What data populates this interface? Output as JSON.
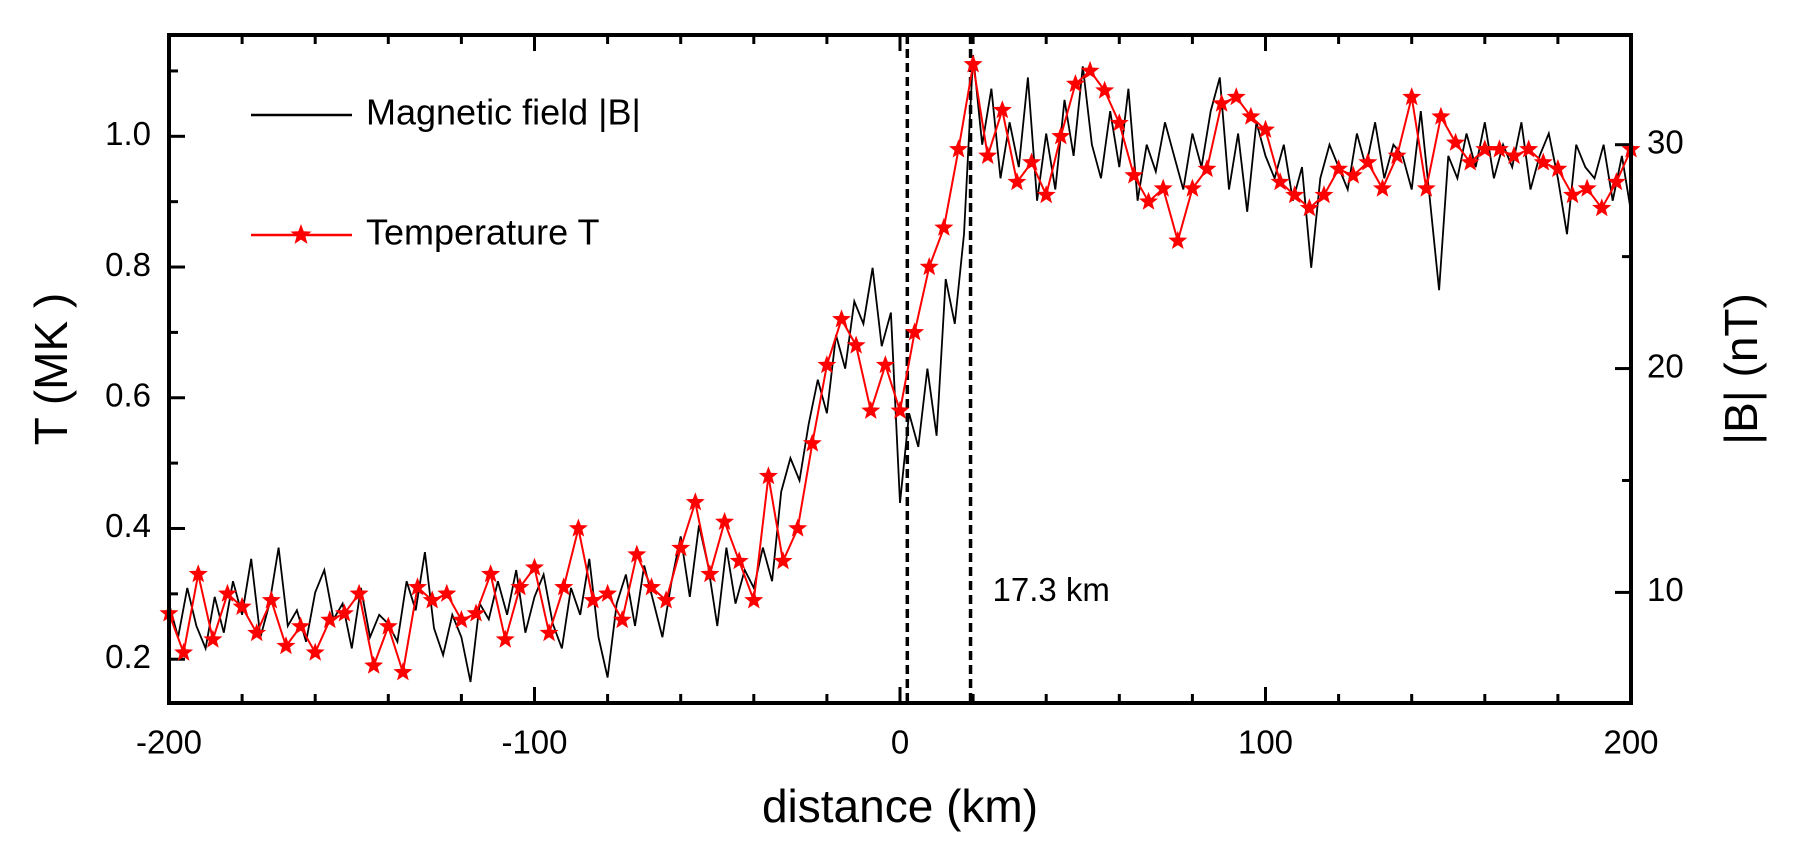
{
  "chart_data": {
    "type": "line",
    "xlabel": "distance (km)",
    "ylabel": "T  (MK )",
    "y2label": "|B| (nT)",
    "annotation": "17.3 km",
    "vlines": [
      2,
      19.3
    ],
    "xlim": [
      -200,
      200
    ],
    "xticks": [
      -200,
      -100,
      0,
      100,
      200
    ],
    "xminorticks": [
      -180,
      -160,
      -140,
      -120,
      -80,
      -60,
      -40,
      -20,
      20,
      40,
      60,
      80,
      120,
      140,
      160,
      180
    ],
    "ylim": [
      0.133,
      1.155
    ],
    "yticks": [
      0.2,
      0.4,
      0.6,
      0.8,
      {
        "value": 1,
        "label": "1.0"
      }
    ],
    "yminorticks": [
      0.3,
      0.5,
      0.7,
      0.9,
      1.1
    ],
    "y2lim": [
      5.06,
      34.9
    ],
    "y2ticks": [
      10,
      20,
      30
    ],
    "y2minorticks": [
      15,
      25
    ],
    "legend": "upper left",
    "series": [
      {
        "name": "Magnetic field  |B|",
        "color": "#000000",
        "axis": "y2",
        "marker": "none",
        "x": [
          -200,
          -197.5,
          -195,
          -192.5,
          -190,
          -187.5,
          -185,
          -182.5,
          -180,
          -177.5,
          -175,
          -172.5,
          -170,
          -167.5,
          -165,
          -162.5,
          -160,
          -157.5,
          -155,
          -152.5,
          -150,
          -147.5,
          -145,
          -142.5,
          -140,
          -137.5,
          -135,
          -132.5,
          -130,
          -127.5,
          -125,
          -122.5,
          -120,
          -117.5,
          -115,
          -112.5,
          -110,
          -107.5,
          -105,
          -102.5,
          -100,
          -97.5,
          -95,
          -92.5,
          -90,
          -87.5,
          -85,
          -82.5,
          -80,
          -77.5,
          -75,
          -72.5,
          -70,
          -67.5,
          -65,
          -62.5,
          -60,
          -57.5,
          -55,
          -52.5,
          -50,
          -47.5,
          -45,
          -42.5,
          -40,
          -37.5,
          -35,
          -32.5,
          -30,
          -27.5,
          -25,
          -22.5,
          -20,
          -17.5,
          -15,
          -12.5,
          -10,
          -7.5,
          -5,
          -2.5,
          0,
          2.5,
          5,
          7.5,
          10,
          12.5,
          15,
          17.5,
          20,
          22.5,
          25,
          27.5,
          30,
          32.5,
          35,
          37.5,
          40,
          42.5,
          45,
          47.5,
          50,
          52.5,
          55,
          57.5,
          60,
          62.5,
          65,
          67.5,
          70,
          72.5,
          75,
          77.5,
          80,
          82.5,
          85,
          87.5,
          90,
          92.5,
          95,
          97.5,
          100,
          102.5,
          105,
          107.5,
          110,
          112.5,
          115,
          117.5,
          120,
          122.5,
          125,
          127.5,
          130,
          132.5,
          135,
          137.5,
          140,
          142.5,
          145,
          147.5,
          150,
          152.5,
          155,
          157.5,
          160,
          162.5,
          165,
          167.5,
          170,
          172.5,
          175,
          177.5,
          180,
          182.5,
          185,
          187.5,
          190,
          192.5,
          195,
          197.5,
          200
        ],
        "values": [
          9.5,
          8.0,
          10.2,
          8.5,
          7.5,
          9.8,
          8.2,
          10.5,
          9.0,
          11.5,
          8.0,
          9.5,
          12.0,
          8.5,
          9.2,
          7.8,
          10.0,
          11.0,
          8.8,
          9.5,
          7.5,
          10.2,
          8.0,
          9.0,
          8.6,
          7.8,
          10.5,
          9.2,
          11.8,
          8.4,
          7.2,
          9.0,
          8.0,
          6.0,
          9.5,
          8.8,
          10.5,
          9.0,
          11.0,
          8.2,
          9.8,
          10.8,
          8.6,
          7.5,
          10.2,
          9.0,
          11.5,
          8.0,
          6.2,
          9.5,
          10.8,
          8.5,
          11.2,
          9.6,
          8.0,
          10.5,
          12.5,
          9.8,
          13.0,
          11.2,
          8.5,
          12.0,
          9.5,
          11.0,
          10.2,
          12.0,
          10.5,
          14.5,
          16.0,
          15.0,
          17.5,
          19.5,
          18.0,
          21.5,
          20.0,
          23.0,
          22.0,
          24.5,
          21.0,
          22.5,
          14.0,
          18.0,
          16.5,
          20.0,
          17.0,
          24.0,
          22.0,
          26.0,
          34.0,
          30.0,
          32.5,
          28.5,
          31.0,
          29.0,
          33.0,
          27.5,
          30.5,
          28.0,
          32.0,
          29.5,
          33.5,
          30.0,
          28.5,
          31.5,
          29.0,
          32.5,
          27.5,
          30.0,
          28.8,
          31.0,
          29.5,
          28.0,
          30.5,
          29.0,
          31.5,
          33.0,
          28.0,
          30.5,
          27.0,
          31.0,
          29.5,
          28.5,
          30.0,
          27.5,
          29.0,
          24.5,
          28.5,
          30.0,
          29.0,
          28.0,
          30.5,
          29.0,
          31.0,
          28.5,
          30.0,
          29.5,
          28.0,
          31.5,
          27.5,
          23.5,
          29.5,
          28.5,
          30.5,
          29.0,
          31.0,
          28.5,
          30.0,
          29.0,
          31.0,
          28.0,
          29.5,
          30.5,
          28.5,
          26.0,
          30.0,
          29.0,
          28.5,
          30.0,
          27.5,
          29.5,
          27.0
        ]
      },
      {
        "name": "Temperature T",
        "color": "#ff0000",
        "axis": "y",
        "marker": "star",
        "x": [
          -200,
          -196,
          -192,
          -188,
          -184,
          -180,
          -176,
          -172,
          -168,
          -164,
          -160,
          -156,
          -152,
          -148,
          -144,
          -140,
          -136,
          -132,
          -128,
          -124,
          -120,
          -116,
          -112,
          -108,
          -104,
          -100,
          -96,
          -92,
          -88,
          -84,
          -80,
          -76,
          -72,
          -68,
          -64,
          -60,
          -56,
          -52,
          -48,
          -44,
          -40,
          -36,
          -32,
          -28,
          -24,
          -20,
          -16,
          -12,
          -8,
          -4,
          0,
          4,
          8,
          12,
          16,
          20,
          24,
          28,
          32,
          36,
          40,
          44,
          48,
          52,
          56,
          60,
          64,
          68,
          72,
          76,
          80,
          84,
          88,
          92,
          96,
          100,
          104,
          108,
          112,
          116,
          120,
          124,
          128,
          132,
          136,
          140,
          144,
          148,
          152,
          156,
          160,
          164,
          168,
          172,
          176,
          180,
          184,
          188,
          192,
          196,
          200
        ],
        "values": [
          0.27,
          0.21,
          0.33,
          0.23,
          0.3,
          0.28,
          0.24,
          0.29,
          0.22,
          0.25,
          0.21,
          0.26,
          0.27,
          0.3,
          0.19,
          0.25,
          0.18,
          0.31,
          0.29,
          0.3,
          0.26,
          0.27,
          0.33,
          0.23,
          0.31,
          0.34,
          0.24,
          0.31,
          0.4,
          0.29,
          0.3,
          0.26,
          0.36,
          0.31,
          0.29,
          0.37,
          0.44,
          0.33,
          0.41,
          0.35,
          0.29,
          0.48,
          0.35,
          0.4,
          0.53,
          0.65,
          0.72,
          0.68,
          0.58,
          0.65,
          0.58,
          0.7,
          0.8,
          0.86,
          0.98,
          1.11,
          0.97,
          1.04,
          0.93,
          0.96,
          0.91,
          1.0,
          1.08,
          1.1,
          1.07,
          1.02,
          0.94,
          0.9,
          0.92,
          0.84,
          0.92,
          0.95,
          1.05,
          1.06,
          1.03,
          1.01,
          0.93,
          0.91,
          0.89,
          0.91,
          0.95,
          0.94,
          0.96,
          0.92,
          0.97,
          1.06,
          0.92,
          1.03,
          0.99,
          0.96,
          0.98,
          0.98,
          0.97,
          0.98,
          0.96,
          0.95,
          0.91,
          0.92,
          0.89,
          0.93,
          0.98
        ]
      }
    ]
  }
}
